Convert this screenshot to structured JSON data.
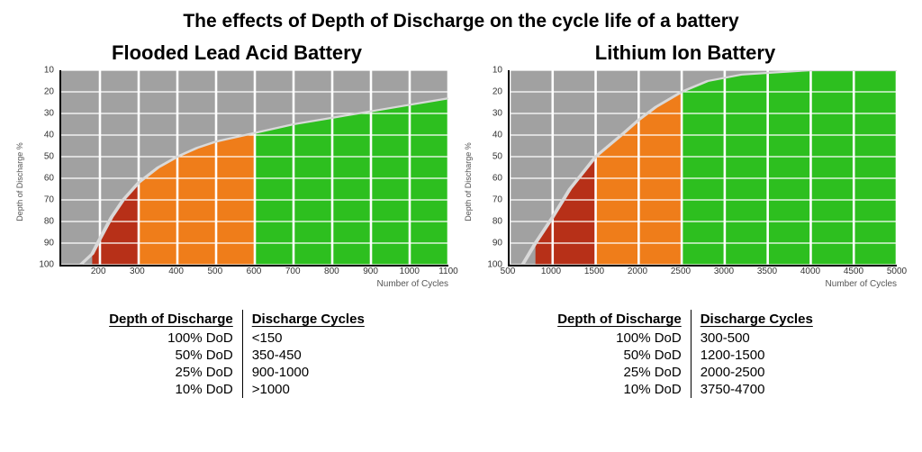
{
  "title": "The effects of Depth of Discharge on the cycle life of a battery",
  "y_axis_label": "Depth of Discharge %",
  "x_axis_label": "Number of Cycles",
  "y_ticks": [
    10,
    20,
    30,
    40,
    50,
    60,
    70,
    80,
    90,
    100
  ],
  "colors": {
    "bg_gray": "#a1a1a1",
    "green": "#2dbf1f",
    "orange": "#ef7d1a",
    "dark_red": "#b73018",
    "grid": "#ffffff",
    "curve": "#d9d9d9",
    "axis": "#000000",
    "page_bg": "#ffffff"
  },
  "panels": [
    {
      "title": "Flooded Lead Acid Battery",
      "x_min": 100,
      "x_max": 1100,
      "x_ticks": [
        200,
        300,
        400,
        500,
        600,
        700,
        800,
        900,
        1000,
        1100
      ],
      "curve": [
        {
          "x": 100,
          "y": 100
        },
        {
          "x": 150,
          "y": 100
        },
        {
          "x": 180,
          "y": 95
        },
        {
          "x": 200,
          "y": 88
        },
        {
          "x": 230,
          "y": 78
        },
        {
          "x": 260,
          "y": 70
        },
        {
          "x": 300,
          "y": 62
        },
        {
          "x": 350,
          "y": 55
        },
        {
          "x": 400,
          "y": 50
        },
        {
          "x": 450,
          "y": 46
        },
        {
          "x": 500,
          "y": 43
        },
        {
          "x": 600,
          "y": 39
        },
        {
          "x": 700,
          "y": 35
        },
        {
          "x": 800,
          "y": 32
        },
        {
          "x": 900,
          "y": 29
        },
        {
          "x": 1000,
          "y": 26
        },
        {
          "x": 1100,
          "y": 23
        }
      ],
      "green_start_x": 600,
      "orange_start_x": 300,
      "darkred_start_x": 180,
      "table": {
        "head_left": "Depth of Discharge",
        "head_right": "Discharge Cycles",
        "rows": [
          {
            "l": "100% DoD",
            "r": "<150"
          },
          {
            "l": "50% DoD",
            "r": "350-450"
          },
          {
            "l": "25% DoD",
            "r": "900-1000"
          },
          {
            "l": "10% DoD",
            "r": ">1000"
          }
        ]
      }
    },
    {
      "title": "Lithium Ion Battery",
      "x_min": 500,
      "x_max": 5000,
      "x_ticks": [
        500,
        1000,
        1500,
        2000,
        2500,
        3000,
        3500,
        4000,
        4500,
        5000
      ],
      "curve": [
        {
          "x": 500,
          "y": 100
        },
        {
          "x": 650,
          "y": 100
        },
        {
          "x": 800,
          "y": 90
        },
        {
          "x": 1000,
          "y": 78
        },
        {
          "x": 1200,
          "y": 65
        },
        {
          "x": 1500,
          "y": 50
        },
        {
          "x": 1800,
          "y": 40
        },
        {
          "x": 2000,
          "y": 33
        },
        {
          "x": 2200,
          "y": 27
        },
        {
          "x": 2500,
          "y": 20
        },
        {
          "x": 2800,
          "y": 15
        },
        {
          "x": 3200,
          "y": 12
        },
        {
          "x": 4000,
          "y": 10
        },
        {
          "x": 5000,
          "y": 10
        }
      ],
      "green_start_x": 2500,
      "orange_start_x": 1500,
      "darkred_start_x": 800,
      "table": {
        "head_left": "Depth of Discharge",
        "head_right": "Discharge Cycles",
        "rows": [
          {
            "l": "100% DoD",
            "r": "300-500"
          },
          {
            "l": "50% DoD",
            "r": "1200-1500"
          },
          {
            "l": "25% DoD",
            "r": "2000-2500"
          },
          {
            "l": "10% DoD",
            "r": "3750-4700"
          }
        ]
      }
    }
  ]
}
